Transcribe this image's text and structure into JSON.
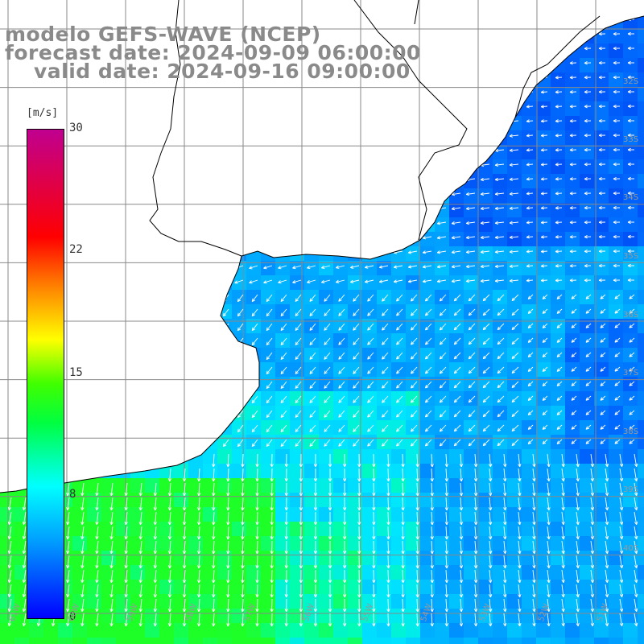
{
  "header": {
    "line1": "modelo GEFS-WAVE (NCEP)",
    "line2": "forecast date: 2024-09-09 06:00:00",
    "line3": "valid date: 2024-09-16 09:00:00"
  },
  "colorbar": {
    "unit": "[m/s]",
    "ticks": [
      "30",
      "22",
      "15",
      "8",
      "0"
    ],
    "tick_values": [
      30,
      22,
      15,
      8,
      0
    ],
    "range": [
      0,
      30
    ]
  },
  "lat_labels": [
    "32S",
    "33S",
    "34S",
    "35S",
    "36S",
    "37S",
    "38S",
    "39S",
    "40S"
  ],
  "lon_labels": [
    "61W",
    "60W",
    "59W",
    "58W",
    "57W",
    "56W",
    "55W",
    "54W",
    "53W",
    "52W",
    "51W"
  ],
  "colors": {
    "land": "#ffffff",
    "grid": "#888888",
    "coast": "#000000",
    "arrows": "#ffffff"
  }
}
